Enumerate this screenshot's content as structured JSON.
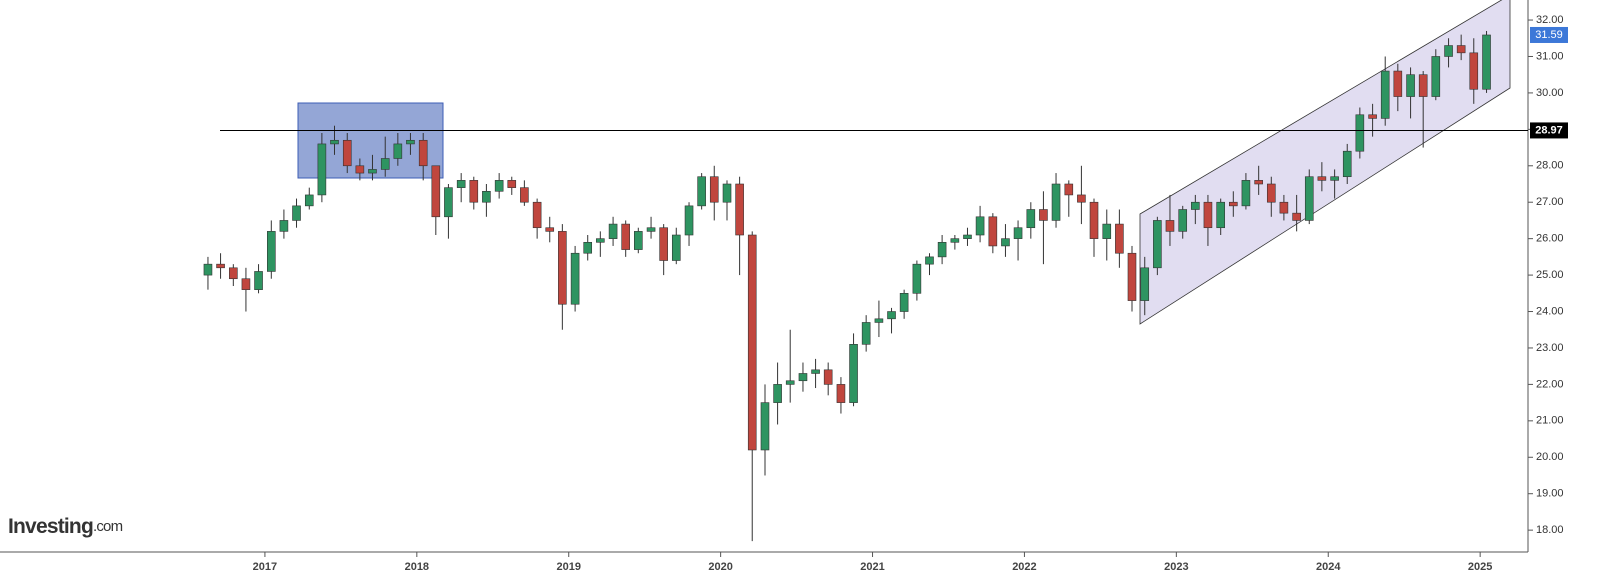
{
  "chart_data": {
    "type": "candlestick",
    "logo": "Investing",
    "logo_suffix": ".com",
    "x": [
      2016.625,
      2016.708,
      2016.792,
      2016.875,
      2016.958,
      2017.042,
      2017.125,
      2017.208,
      2017.292,
      2017.375,
      2017.458,
      2017.542,
      2017.625,
      2017.708,
      2017.792,
      2017.875,
      2017.958,
      2018.042,
      2018.125,
      2018.208,
      2018.292,
      2018.375,
      2018.458,
      2018.542,
      2018.625,
      2018.708,
      2018.792,
      2018.875,
      2018.958,
      2019.042,
      2019.125,
      2019.208,
      2019.292,
      2019.375,
      2019.458,
      2019.542,
      2019.625,
      2019.708,
      2019.792,
      2019.875,
      2019.958,
      2020.042,
      2020.125,
      2020.208,
      2020.292,
      2020.375,
      2020.458,
      2020.542,
      2020.625,
      2020.708,
      2020.792,
      2020.875,
      2020.958,
      2021.042,
      2021.125,
      2021.208,
      2021.292,
      2021.375,
      2021.458,
      2021.542,
      2021.625,
      2021.708,
      2021.792,
      2021.875,
      2021.958,
      2022.042,
      2022.125,
      2022.208,
      2022.292,
      2022.375,
      2022.458,
      2022.542,
      2022.625,
      2022.708,
      2022.792,
      2022.875,
      2022.958,
      2023.042,
      2023.125,
      2023.208,
      2023.292,
      2023.375,
      2023.458,
      2023.542,
      2023.625,
      2023.708,
      2023.792,
      2023.875,
      2023.958,
      2024.042,
      2024.125,
      2024.208,
      2024.292,
      2024.375,
      2024.458,
      2024.542,
      2024.625,
      2024.708,
      2024.792,
      2024.875,
      2024.958,
      2025.042
    ],
    "open": [
      25.0,
      25.3,
      25.2,
      24.9,
      24.6,
      25.1,
      26.2,
      26.5,
      26.9,
      27.2,
      28.6,
      28.7,
      28.0,
      27.8,
      27.9,
      28.2,
      28.6,
      28.7,
      28.0,
      26.6,
      27.4,
      27.6,
      27.0,
      27.3,
      27.6,
      27.4,
      27.0,
      26.3,
      26.2,
      24.2,
      25.6,
      25.9,
      26.0,
      26.4,
      25.7,
      26.2,
      26.3,
      25.4,
      26.1,
      26.9,
      27.7,
      27.0,
      27.5,
      26.1,
      20.2,
      21.5,
      22.0,
      22.1,
      22.3,
      22.4,
      22.0,
      21.5,
      23.1,
      23.7,
      23.8,
      24.0,
      24.5,
      25.3,
      25.5,
      25.9,
      26.0,
      26.1,
      26.6,
      25.8,
      26.0,
      26.3,
      26.8,
      26.5,
      27.5,
      27.2,
      27.0,
      26.0,
      26.4,
      25.6,
      24.3,
      25.2,
      26.5,
      26.2,
      26.8,
      27.0,
      26.3,
      27.0,
      26.9,
      27.6,
      27.5,
      27.0,
      26.7,
      26.5,
      27.7,
      27.6,
      27.7,
      28.4,
      29.4,
      29.3,
      30.6,
      29.9,
      30.5,
      29.9,
      31.0,
      31.3,
      31.1,
      30.1
    ],
    "high": [
      25.5,
      25.6,
      25.3,
      25.2,
      25.3,
      26.5,
      26.8,
      27.1,
      27.4,
      28.9,
      29.1,
      28.9,
      28.2,
      28.3,
      28.8,
      28.9,
      28.9,
      28.9,
      28.0,
      27.5,
      27.8,
      27.7,
      27.5,
      27.8,
      27.7,
      27.6,
      27.1,
      26.6,
      26.4,
      25.8,
      26.1,
      26.2,
      26.6,
      26.5,
      26.3,
      26.6,
      26.4,
      26.3,
      27.0,
      27.8,
      28.0,
      27.6,
      27.7,
      26.2,
      22.0,
      22.6,
      23.5,
      22.6,
      22.7,
      22.6,
      22.2,
      23.4,
      23.9,
      24.3,
      24.1,
      24.6,
      25.4,
      25.6,
      26.1,
      26.1,
      26.3,
      26.9,
      26.7,
      26.4,
      26.5,
      27.0,
      27.3,
      27.8,
      27.6,
      28.0,
      27.1,
      26.8,
      26.8,
      25.8,
      25.5,
      26.6,
      27.2,
      26.9,
      27.2,
      27.2,
      27.1,
      27.3,
      27.8,
      28.0,
      27.7,
      27.2,
      27.2,
      27.9,
      28.1,
      27.9,
      28.6,
      29.6,
      29.7,
      31.0,
      30.8,
      30.7,
      30.6,
      31.2,
      31.5,
      31.6,
      31.5,
      31.7
    ],
    "low": [
      24.6,
      24.9,
      24.7,
      24.0,
      24.5,
      24.9,
      26.0,
      26.3,
      26.8,
      27.0,
      28.3,
      27.8,
      27.6,
      27.6,
      27.7,
      28.0,
      28.3,
      27.6,
      26.1,
      26.0,
      27.0,
      26.8,
      26.6,
      27.1,
      27.2,
      26.9,
      26.0,
      25.9,
      23.5,
      24.0,
      25.4,
      25.5,
      25.8,
      25.5,
      25.6,
      26.0,
      25.0,
      25.3,
      25.8,
      26.8,
      26.5,
      26.5,
      25.0,
      17.7,
      19.5,
      20.9,
      21.5,
      21.8,
      21.9,
      21.7,
      21.2,
      21.4,
      22.9,
      23.3,
      23.4,
      23.8,
      24.3,
      25.0,
      25.3,
      25.7,
      25.8,
      25.9,
      25.6,
      25.5,
      25.4,
      26.0,
      25.3,
      26.3,
      26.6,
      26.4,
      25.5,
      25.4,
      25.2,
      24.0,
      23.9,
      25.0,
      25.8,
      26.0,
      26.4,
      25.8,
      26.1,
      26.6,
      26.8,
      27.2,
      26.6,
      26.5,
      26.2,
      26.4,
      27.3,
      27.1,
      27.5,
      28.2,
      28.8,
      29.1,
      29.5,
      29.3,
      28.5,
      29.8,
      30.7,
      30.9,
      29.7,
      30.0
    ],
    "close": [
      25.3,
      25.2,
      24.9,
      24.6,
      25.1,
      26.2,
      26.5,
      26.9,
      27.2,
      28.6,
      28.7,
      28.0,
      27.8,
      27.9,
      28.2,
      28.6,
      28.7,
      28.0,
      26.6,
      27.4,
      27.6,
      27.0,
      27.3,
      27.6,
      27.4,
      27.0,
      26.3,
      26.2,
      24.2,
      25.6,
      25.9,
      26.0,
      26.4,
      25.7,
      26.2,
      26.3,
      25.4,
      26.1,
      26.9,
      27.7,
      27.0,
      27.5,
      26.1,
      20.2,
      21.5,
      22.0,
      22.1,
      22.3,
      22.4,
      22.0,
      21.5,
      23.1,
      23.7,
      23.8,
      24.0,
      24.5,
      25.3,
      25.5,
      25.9,
      26.0,
      26.1,
      26.6,
      25.8,
      26.0,
      26.3,
      26.8,
      26.5,
      27.5,
      27.2,
      27.0,
      26.0,
      26.4,
      25.6,
      24.3,
      25.2,
      26.5,
      26.2,
      26.8,
      27.0,
      26.3,
      27.0,
      26.9,
      27.6,
      27.5,
      27.0,
      26.7,
      26.5,
      27.7,
      27.6,
      27.7,
      28.4,
      29.4,
      29.3,
      30.6,
      29.9,
      30.5,
      29.9,
      31.0,
      31.3,
      31.1,
      30.1,
      31.59
    ],
    "up_color": "#2e9461",
    "down_color": "#c0463e",
    "xlim": [
      2015.256,
      2025.315
    ],
    "xticks": [
      2017,
      2018,
      2019,
      2020,
      2021,
      2022,
      2023,
      2024,
      2025
    ],
    "ylim": [
      17.4,
      32.55
    ],
    "yticks": [
      {
        "value": 18,
        "label": "18.00"
      },
      {
        "value": 19,
        "label": "19.00"
      },
      {
        "value": 20,
        "label": "20.00"
      },
      {
        "value": 21,
        "label": "21.00"
      },
      {
        "value": 22,
        "label": "22.00"
      },
      {
        "value": 23,
        "label": "23.00"
      },
      {
        "value": 24,
        "label": "24.00"
      },
      {
        "value": 25,
        "label": "25.00"
      },
      {
        "value": 26,
        "label": "26.00"
      },
      {
        "value": 27,
        "label": "27.00"
      },
      {
        "value": 28,
        "label": "28.00"
      },
      {
        "value": 29,
        "label": "29.00"
      },
      {
        "value": 30,
        "label": "30.00"
      },
      {
        "value": 31,
        "label": "31.00"
      },
      {
        "value": 32,
        "label": "32.00"
      }
    ],
    "level_line": 28.97,
    "last_price": 31.59,
    "last_price_color": "#3c78d8",
    "grid": false
  }
}
